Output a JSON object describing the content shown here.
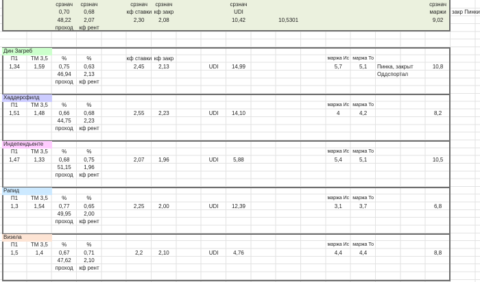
{
  "summary": {
    "srznach_label": "срзнач",
    "pct1": "0,70",
    "pct2": "0,68",
    "prohod": "48,22",
    "kf_rent": "2,07",
    "prohod_label": "проход",
    "kf_rent_label": "кф рент",
    "kf_stavki_label": "кф ставки",
    "kf_zakr_label": "кф закр",
    "kf_stavki": "2,30",
    "kf_zakr": "2,08",
    "udi_label": "UDI",
    "udi": "10,42",
    "extra_value": "10,5301",
    "marzhi_label": "маржи",
    "marzhi": "9,02",
    "zakr_pinki_label": "закр Пинки",
    "fill_color": "#ebf1de"
  },
  "labels": {
    "p1": "П1",
    "tm": "ТМ 3,5",
    "pct": "%",
    "prohod": "проход",
    "kf_rent": "кф рент",
    "kf_stavki": "кф ставки",
    "kf_zakr": "кф закр",
    "udi": "UDI",
    "marzha_is": "маржа Ис",
    "marzha_to": "маржа То"
  },
  "blocks": [
    {
      "name": "Дин Загреб",
      "color": "#ccffcc",
      "show_kf_header": true,
      "p1": "1,34",
      "tm": "1,59",
      "pct1": "0,75",
      "pct2": "0,63",
      "prohod": "46,94",
      "kf_rent": "2,13",
      "kf_stavki": "2,45",
      "kf_zakr": "2,13",
      "udi": "14,99",
      "marzha_is": "5,7",
      "marzha_to": "5,1",
      "total": "10,8",
      "notes": [
        "Пинка, закрыт",
        "Оддспортал"
      ]
    },
    {
      "name": "Хаддерсфилд",
      "color": "#ccccff",
      "show_kf_header": false,
      "p1": "1,51",
      "tm": "1,48",
      "pct1": "0,66",
      "pct2": "0,68",
      "prohod": "44,75",
      "kf_rent": "2,23",
      "kf_stavki": "2,55",
      "kf_zakr": "2,23",
      "udi": "14,10",
      "marzha_is": "4",
      "marzha_to": "4,2",
      "total": "8,2",
      "notes": []
    },
    {
      "name": "Индепендьенте",
      "color": "#ffccff",
      "show_kf_header": false,
      "p1": "1,47",
      "tm": "1,33",
      "pct1": "0,68",
      "pct2": "0,75",
      "prohod": "51,15",
      "kf_rent": "1,96",
      "kf_stavki": "2,07",
      "kf_zakr": "1,96",
      "udi": "5,88",
      "marzha_is": "5,4",
      "marzha_to": "5,1",
      "total": "10,5",
      "notes": []
    },
    {
      "name": "Рапид",
      "color": "#cce9ff",
      "show_kf_header": false,
      "p1": "1,3",
      "tm": "1,54",
      "pct1": "0,77",
      "pct2": "0,65",
      "prohod": "49,95",
      "kf_rent": "2,00",
      "kf_stavki": "2,25",
      "kf_zakr": "2,00",
      "udi": "12,39",
      "marzha_is": "3,1",
      "marzha_to": "3,7",
      "total": "6,8",
      "notes": []
    },
    {
      "name": "Визела",
      "color": "#fde4d4",
      "show_kf_header": false,
      "p1": "1,5",
      "tm": "1,4",
      "pct1": "0,67",
      "pct2": "0,71",
      "prohod": "47,62",
      "kf_rent": "2,10",
      "kf_stavki": "2,2",
      "kf_zakr": "2,10",
      "udi": "4,76",
      "marzha_is": "4,4",
      "marzha_to": "4,4",
      "total": "8,8",
      "notes": []
    }
  ]
}
